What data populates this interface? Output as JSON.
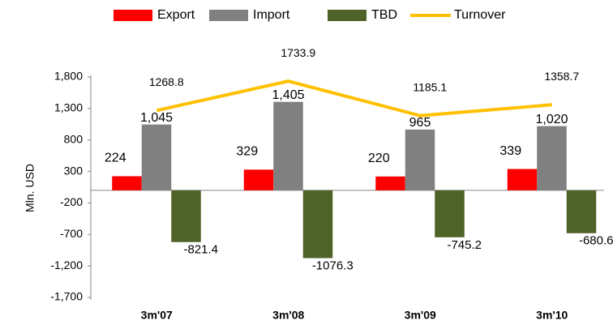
{
  "chart_data": {
    "type": "bar",
    "categories": [
      "3m'07",
      "3m'08",
      "3m'09",
      "3m'10"
    ],
    "series": [
      {
        "name": "Export",
        "type": "bar",
        "color": "#ff0000",
        "values": [
          224,
          329,
          220,
          339
        ]
      },
      {
        "name": "Import",
        "type": "bar",
        "color": "#808080",
        "values": [
          1045,
          1405,
          965,
          1020
        ],
        "value_labels": [
          "1,045",
          "1,405",
          "965",
          "1,020"
        ]
      },
      {
        "name": "TBD",
        "type": "bar",
        "color": "#4f6228",
        "values": [
          -821.4,
          -1076.3,
          -745.2,
          -680.6
        ]
      },
      {
        "name": "Turnover",
        "type": "line",
        "color": "#ffc000",
        "values": [
          1268.8,
          1733.9,
          1185.1,
          1358.7
        ]
      }
    ],
    "ylabel": "Mln. USD",
    "ylim": [
      -1700,
      1800
    ],
    "yticks": [
      {
        "value": -1700,
        "label": "-1,700"
      },
      {
        "value": -1200,
        "label": "-1,200"
      },
      -700,
      -200,
      300,
      800,
      {
        "value": 1300,
        "label": "1,300"
      },
      {
        "value": 1800,
        "label": "1,800"
      }
    ],
    "grid": false,
    "legend": "top"
  }
}
